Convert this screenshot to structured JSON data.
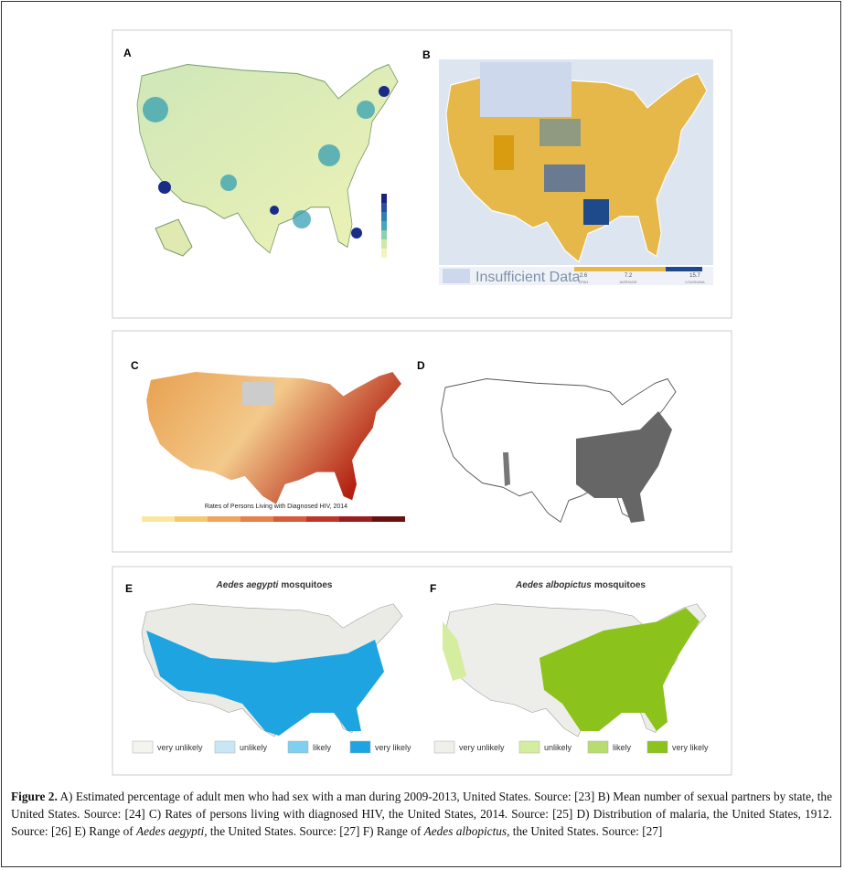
{
  "panels": [
    {
      "label": "A"
    },
    {
      "label": "B",
      "legend": {
        "insufficient": "Insufficient Data",
        "low_value": "2.6",
        "low_label": "UTAH",
        "mid_value": "7.2",
        "mid_label": "AVERAGE",
        "high_value": "15.7",
        "high_label": "LOUISIANA"
      }
    },
    {
      "label": "C",
      "legend_title": "Rates of Persons Living with Diagnosed HIV, 2014"
    },
    {
      "label": "D"
    },
    {
      "label": "E",
      "title_italic": "Aedes aegypti",
      "title_rest": "mosquitoes",
      "legend": [
        "very unlikely",
        "unlikely",
        "likely",
        "very likely"
      ]
    },
    {
      "label": "F",
      "title_italic": "Aedes albopictus",
      "title_rest": "mosquitoes",
      "legend": [
        "very unlikely",
        "unlikely",
        "likely",
        "very likely"
      ]
    }
  ],
  "caption": {
    "label": "Figure 2.",
    "parts": [
      {
        "text": "A) Estimated percentage of adult men who had sex with a man during 2009-2013, United States. Source: [23] B) Mean number of sexual partners by state, the United States.  Source: [24] C) Rates of persons living with diagnosed HIV, the United States, 2014. Source: [25] D) Distribution of malaria, the United States, 1912. Source: [26] E) Range of "
      },
      {
        "text": "Aedes aegypti",
        "italic": true
      },
      {
        "text": ", the United States. Source: [27] F) Range of "
      },
      {
        "text": "Aedes albopictus",
        "italic": true
      },
      {
        "text": ", the United States. Source: [27]"
      }
    ]
  }
}
